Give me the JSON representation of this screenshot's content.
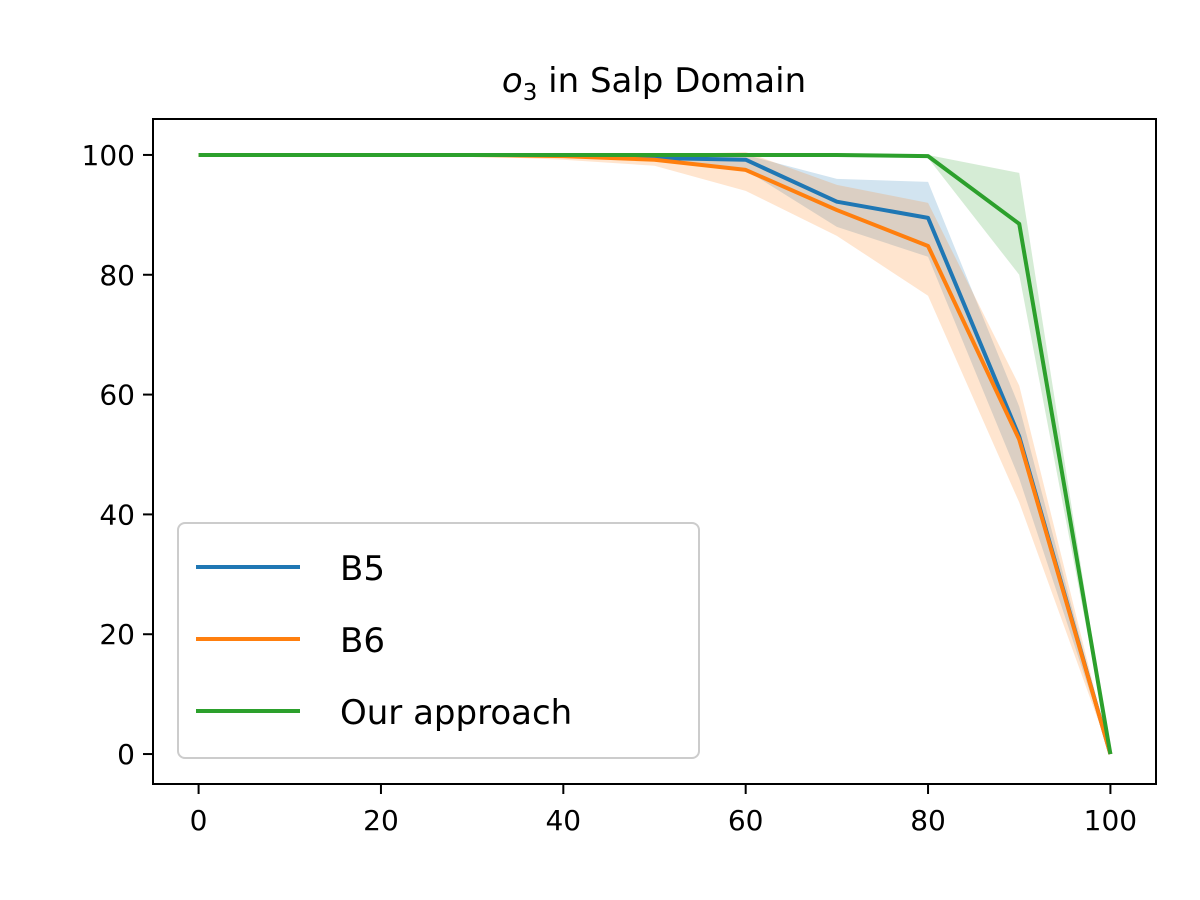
{
  "chart_data": {
    "type": "line",
    "title": "o3 in Salp Domain",
    "title_base": "o",
    "title_sub": "3",
    "title_rest": " in Salp Domain",
    "xlabel": "",
    "ylabel": "",
    "xlim": [
      -5,
      105
    ],
    "ylim": [
      -5,
      106
    ],
    "xticks": [
      0,
      20,
      40,
      60,
      80,
      100
    ],
    "yticks": [
      0,
      20,
      40,
      60,
      80,
      100
    ],
    "legend_position": "lower-left",
    "grid": false,
    "x": [
      0,
      10,
      20,
      30,
      40,
      50,
      60,
      70,
      80,
      90,
      100
    ],
    "series": [
      {
        "name": "B5",
        "color": "#1f77b4",
        "values": [
          100,
          100,
          100,
          100,
          100,
          99.5,
          99.2,
          92.2,
          89.5,
          53,
          0
        ],
        "lower": [
          100,
          100,
          100,
          100,
          99.8,
          99,
          97.5,
          88,
          83,
          46,
          0
        ],
        "upper": [
          100,
          100,
          100,
          100,
          100,
          100,
          100,
          96,
          95.5,
          58,
          0
        ]
      },
      {
        "name": "B6",
        "color": "#ff7f0e",
        "values": [
          100,
          100,
          100,
          100,
          99.8,
          99.2,
          97.5,
          90.8,
          84.8,
          52.5,
          0
        ],
        "lower": [
          100,
          100,
          100,
          99.8,
          99.2,
          98.2,
          94,
          86.5,
          76.5,
          42,
          0
        ],
        "upper": [
          100,
          100,
          100,
          100,
          100,
          100,
          100.5,
          95,
          92,
          61.5,
          0
        ]
      },
      {
        "name": "Our approach",
        "color": "#2ca02c",
        "values": [
          100,
          100,
          100,
          100,
          100,
          100,
          100,
          100,
          99.8,
          88.5,
          0
        ],
        "lower": [
          100,
          100,
          100,
          100,
          100,
          100,
          100,
          100,
          99.5,
          80,
          0
        ],
        "upper": [
          100,
          100,
          100,
          100,
          100,
          100,
          100,
          100,
          100,
          97,
          0
        ]
      }
    ]
  }
}
